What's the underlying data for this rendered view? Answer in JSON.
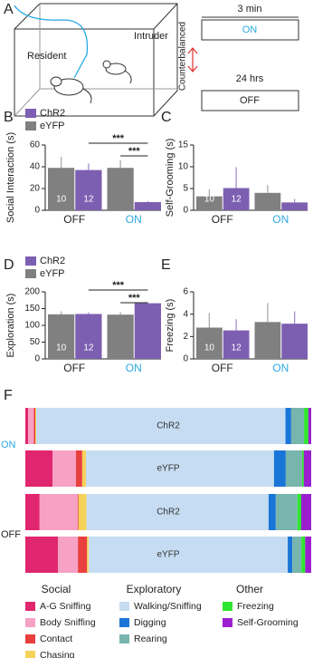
{
  "panel_a": {
    "label": "A",
    "resident": "Resident",
    "intruder": "Intruder",
    "duration": "3 min",
    "on": "ON",
    "interval": "24 hrs",
    "off": "OFF",
    "counterbalanced": "Counterbalanced"
  },
  "chart_data": [
    {
      "type": "bar",
      "panel": "B",
      "ylabel": "Social Interaction (s)",
      "categories": [
        "OFF",
        "ON"
      ],
      "category_colors": [
        "#222222",
        "#29a9e0"
      ],
      "ylim": [
        0,
        60
      ],
      "yticks": [
        0,
        20,
        40,
        60
      ],
      "significance": [
        "***",
        "***"
      ],
      "series": [
        {
          "name": "eYFP",
          "color": "#808080",
          "n": 10,
          "values": [
            39,
            39
          ],
          "errors": [
            10,
            7
          ]
        },
        {
          "name": "ChR2",
          "color": "#7d5fb2",
          "n": 12,
          "values": [
            37,
            7.5
          ],
          "errors": [
            6,
            1
          ]
        }
      ]
    },
    {
      "type": "bar",
      "panel": "C",
      "ylabel": "Self-Grooming (s)",
      "categories": [
        "OFF",
        "ON"
      ],
      "category_colors": [
        "#222222",
        "#29a9e0"
      ],
      "ylim": [
        0,
        15
      ],
      "yticks": [
        0,
        5,
        10,
        15
      ],
      "series": [
        {
          "color": "#808080",
          "n": 10,
          "values": [
            3.2,
            4
          ],
          "errors": [
            1.6,
            1.8
          ]
        },
        {
          "color": "#7d5fb2",
          "n": 12,
          "values": [
            5.1,
            1.8
          ],
          "errors": [
            4.8,
            0.8
          ]
        }
      ]
    },
    {
      "type": "bar",
      "panel": "D",
      "ylabel": "Exploration (s)",
      "categories": [
        "OFF",
        "ON"
      ],
      "category_colors": [
        "#222222",
        "#29a9e0"
      ],
      "ylim": [
        0,
        200
      ],
      "yticks": [
        0,
        50,
        100,
        150,
        200
      ],
      "significance": [
        "***",
        "***"
      ],
      "series": [
        {
          "name": "eYFP",
          "color": "#808080",
          "n": 10,
          "values": [
            133,
            132
          ],
          "errors": [
            9,
            7
          ]
        },
        {
          "name": "ChR2",
          "color": "#7d5fb2",
          "n": 12,
          "values": [
            134,
            166
          ],
          "errors": [
            5,
            3
          ]
        }
      ]
    },
    {
      "type": "bar",
      "panel": "E",
      "ylabel": "Freezing (s)",
      "categories": [
        "OFF",
        "ON"
      ],
      "category_colors": [
        "#222222",
        "#29a9e0"
      ],
      "ylim": [
        0,
        6
      ],
      "yticks": [
        0,
        2,
        4,
        6
      ],
      "series": [
        {
          "color": "#808080",
          "n": 10,
          "values": [
            2.8,
            3.3
          ],
          "errors": [
            1.3,
            1.7
          ]
        },
        {
          "color": "#7d5fb2",
          "n": 12,
          "values": [
            2.55,
            3.15
          ],
          "errors": [
            1.0,
            1.1
          ]
        }
      ]
    },
    {
      "type": "stacked_barh",
      "panel": "F",
      "categories": [
        "ChR2",
        "eYFP",
        "ChR2",
        "eYFP"
      ],
      "groups": [
        {
          "label": "ON",
          "color": "#29a9e0"
        },
        {
          "label": "OFF",
          "color": "#222222"
        }
      ],
      "legend_groups": [
        "Social",
        "Exploratory",
        "Other"
      ],
      "series": [
        {
          "name": "A-G Sniffing",
          "color": "#e0266f",
          "values": [
            1,
            9.5,
            5,
            11.4
          ]
        },
        {
          "name": "Body Sniffing",
          "color": "#f7a1c4",
          "values": [
            2,
            8.2,
            13.3,
            7
          ]
        },
        {
          "name": "Contact",
          "color": "#e8403f",
          "values": [
            0.5,
            2.2,
            0.3,
            3.2
          ]
        },
        {
          "name": "Chasing",
          "color": "#f5d35a",
          "values": [
            0.3,
            1.3,
            2.8,
            0.6
          ]
        },
        {
          "name": "Walking/Sniffing",
          "color": "#c6dcf2",
          "values": [
            87.2,
            65.8,
            63.7,
            69.6
          ]
        },
        {
          "name": "Digging",
          "color": "#1a75d9",
          "values": [
            2,
            4.1,
            2.5,
            1.6
          ]
        },
        {
          "name": "Rearing",
          "color": "#77b5ad",
          "values": [
            4.5,
            5.7,
            7.6,
            3.2
          ]
        },
        {
          "name": "Freezing",
          "color": "#2ee62e",
          "values": [
            1.5,
            0.6,
            1.3,
            1.3
          ]
        },
        {
          "name": "Self-Grooming",
          "color": "#9b1fcf",
          "values": [
            1,
            2.6,
            3.5,
            2.1
          ]
        }
      ]
    }
  ]
}
